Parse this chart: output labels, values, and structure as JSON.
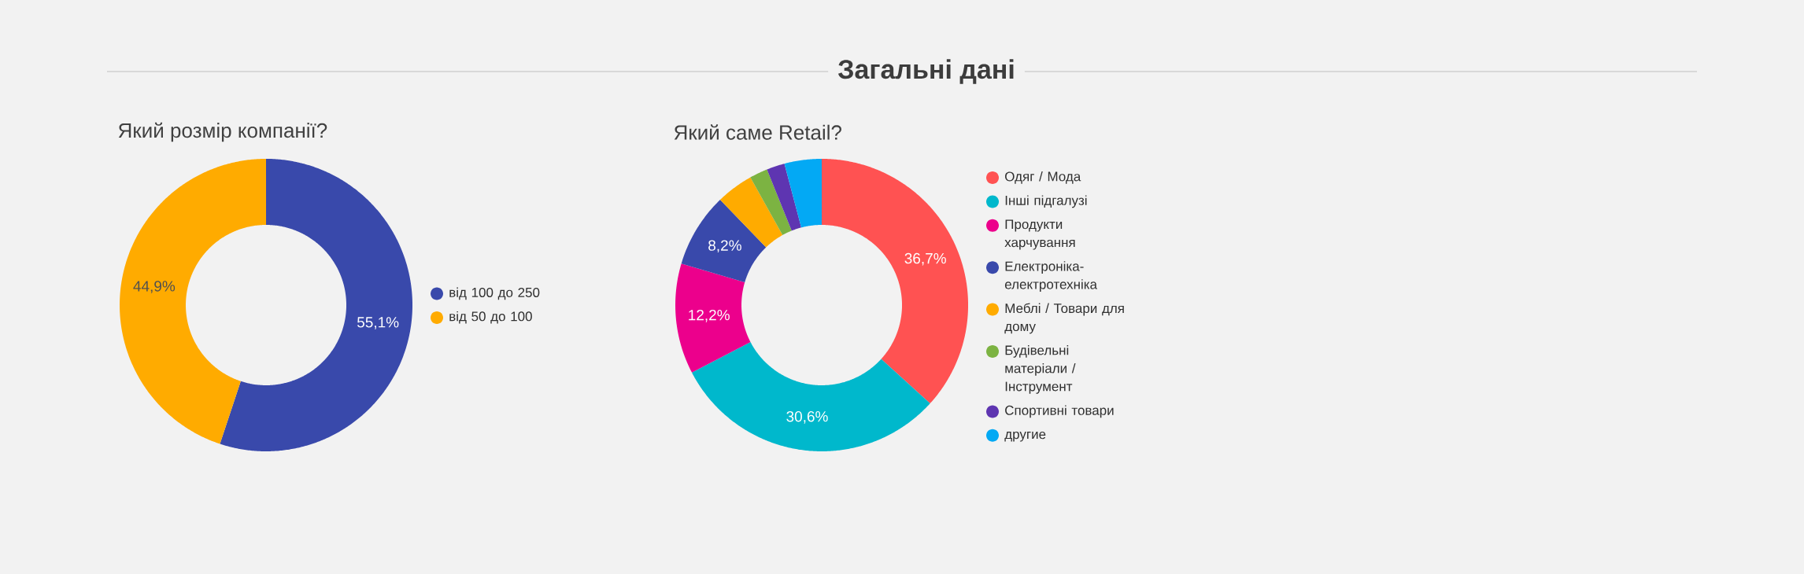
{
  "chart_data": [
    {
      "type": "donut",
      "title": "Який розмір компанії?",
      "annotations": [
        "Загальні дані"
      ],
      "categories": [
        "від 100 до 250",
        "від 50 до 100"
      ],
      "values": [
        55.1,
        44.9
      ],
      "colors": [
        "#3949ab",
        "#ffab00"
      ],
      "value_labels": [
        "55,1%",
        "44,9%"
      ],
      "legend": "right"
    },
    {
      "type": "donut",
      "title": "Який саме Retail?",
      "categories": [
        "Одяг / Мода",
        "Інші підгалузі",
        "Продукти харчування",
        "Електроніка-електротехніка",
        "Меблі / Товари для дому",
        "Будівельні матеріали / Інструмент",
        "Спортивні товари",
        "другие"
      ],
      "values": [
        36.7,
        30.6,
        12.2,
        8.2,
        4.1,
        2.0,
        2.0,
        4.1
      ],
      "colors": [
        "#ff5252",
        "#00b8cc",
        "#ec008c",
        "#3949ab",
        "#ffab00",
        "#7cb342",
        "#5e35b1",
        "#03a9f4"
      ],
      "value_labels": [
        "36,7%",
        "30,6%",
        "12,2%",
        "8,2%",
        null,
        null,
        null,
        null
      ],
      "legend": "right"
    }
  ]
}
